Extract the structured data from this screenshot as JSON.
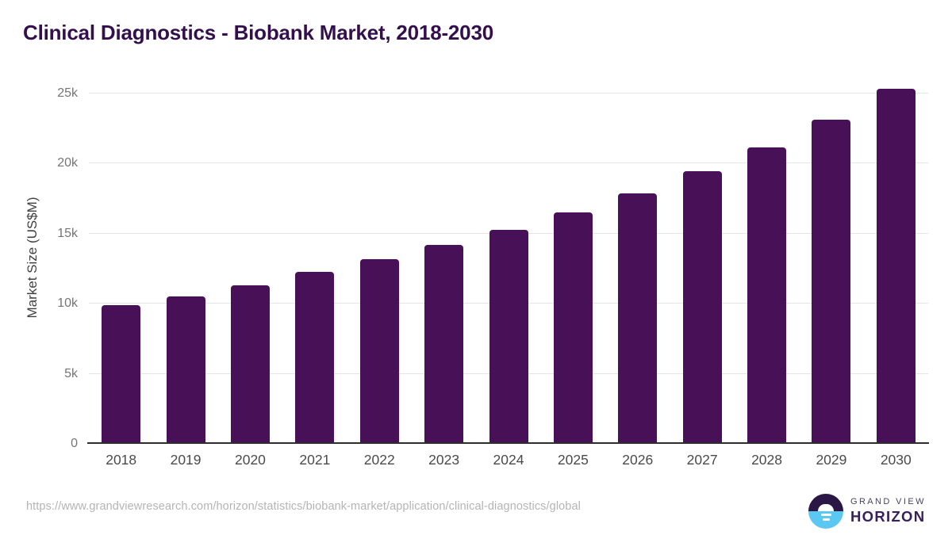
{
  "chart_data": {
    "type": "bar",
    "title": "Clinical Diagnostics - Biobank Market, 2018-2030",
    "xlabel": "",
    "ylabel": "Market Size (US$M)",
    "categories": [
      "2018",
      "2019",
      "2020",
      "2021",
      "2022",
      "2023",
      "2024",
      "2025",
      "2026",
      "2027",
      "2028",
      "2029",
      "2030"
    ],
    "values": [
      9900,
      10520,
      11310,
      12270,
      13180,
      14200,
      15280,
      16520,
      17870,
      19460,
      21150,
      23130,
      25350
    ],
    "ylim": [
      0,
      25000
    ],
    "yticks": [
      0,
      5000,
      10000,
      15000,
      20000,
      25000
    ],
    "ytick_labels": [
      "0",
      "5k",
      "10k",
      "15k",
      "20k",
      "25k"
    ],
    "grid": "horizontal-only",
    "legend": "none",
    "bar_color": "#481057"
  },
  "footer": {
    "source_url": "https://www.grandviewresearch.com/horizon/statistics/biobank-market/application/clinical-diagnostics/global",
    "brand_line1": "GRAND VIEW",
    "brand_line2": "HORIZON"
  },
  "colors": {
    "title_text": "#33104d",
    "bar": "#481057",
    "axis_line": "#2e2e2e",
    "gridline": "#e5e5e5",
    "y_tick_text": "#757575",
    "x_tick_text": "#4a4a4a",
    "source_url_text": "#b4b4b4",
    "logo_dark_purple": "#2a1746",
    "logo_light_blue": "#5bc7f3",
    "background": "#ffffff"
  }
}
